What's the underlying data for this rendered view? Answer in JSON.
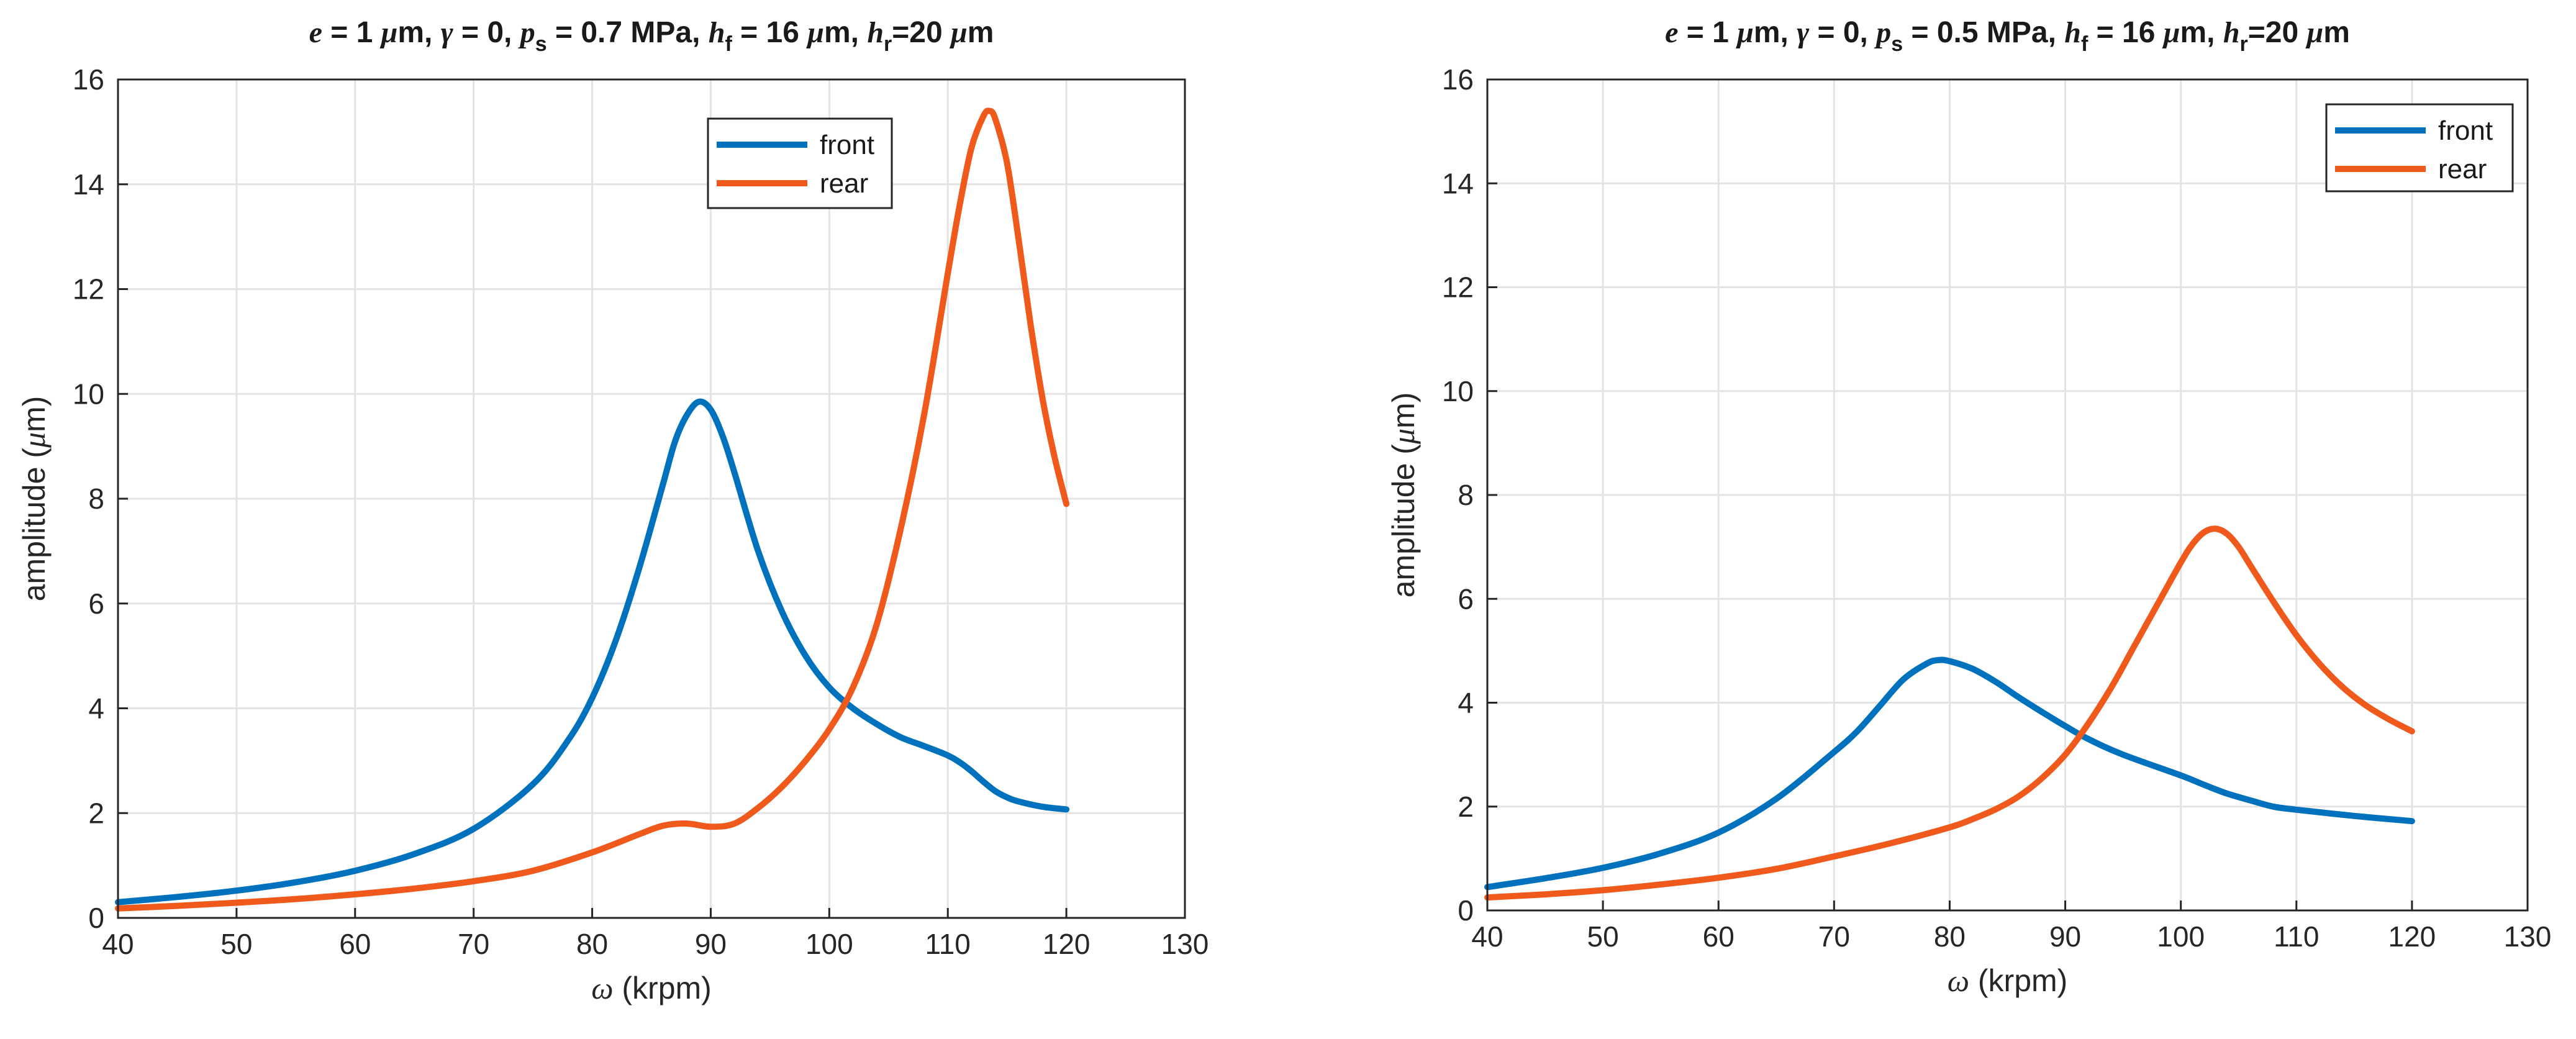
{
  "chart_data": [
    {
      "type": "line",
      "title": {
        "e_sym": "e",
        "e_eq": " = 1 ",
        "e_unit_mu": "μ",
        "e_unit_m": "m, ",
        "gamma_sym": "γ",
        "gamma_eq": " = 0,  ",
        "p_sym": "p",
        "p_sub": "s",
        "p_eq": " = 0.7 MPa,  ",
        "hf_sym": "h",
        "hf_sub": "f",
        "hf_eq": " = 16 ",
        "hf_unit_mu": "μ",
        "hf_unit_m": "m,  ",
        "hr_sym": "h",
        "hr_sub": "r",
        "hr_eq": "=20 ",
        "hr_unit_mu": "μ",
        "hr_unit_m": "m"
      },
      "xlabel": {
        "sym": "ω",
        "text": " (krpm)"
      },
      "ylabel": {
        "pre": "amplitude (",
        "mu": "μ",
        "post": "m)"
      },
      "xlim": [
        40,
        130
      ],
      "ylim": [
        0,
        16
      ],
      "xticks": [
        40,
        50,
        60,
        70,
        80,
        90,
        100,
        110,
        120,
        130
      ],
      "yticks": [
        0,
        2,
        4,
        6,
        8,
        10,
        12,
        14,
        16
      ],
      "xtick_labels": [
        "40",
        "50",
        "60",
        "70",
        "80",
        "90",
        "100",
        "110",
        "120",
        "130"
      ],
      "ytick_labels": [
        "0",
        "2",
        "4",
        "6",
        "8",
        "10",
        "12",
        "14",
        "16"
      ],
      "grid": true,
      "legend_position": "top-right",
      "series": [
        {
          "name": "front",
          "color": "#0072bd",
          "x": [
            40,
            45,
            50,
            55,
            60,
            65,
            70,
            75,
            78,
            80,
            82,
            84,
            86,
            87,
            88,
            89,
            90,
            91,
            92,
            94,
            96,
            98,
            100,
            102,
            104,
            106,
            108,
            110,
            111,
            112,
            113,
            114,
            115,
            116,
            118,
            120
          ],
          "y": [
            0.3,
            0.4,
            0.52,
            0.68,
            0.9,
            1.22,
            1.7,
            2.55,
            3.4,
            4.2,
            5.3,
            6.7,
            8.3,
            9.1,
            9.6,
            9.85,
            9.7,
            9.2,
            8.5,
            7.0,
            5.85,
            5.0,
            4.4,
            4.0,
            3.7,
            3.45,
            3.28,
            3.1,
            2.97,
            2.8,
            2.6,
            2.42,
            2.3,
            2.22,
            2.12,
            2.07
          ]
        },
        {
          "name": "rear",
          "color": "#ef5a1c",
          "x": [
            40,
            45,
            50,
            55,
            60,
            65,
            70,
            75,
            80,
            84,
            86,
            88,
            90,
            92,
            94,
            96,
            98,
            100,
            102,
            104,
            106,
            108,
            110,
            111,
            112,
            113,
            113.5,
            114,
            115,
            116,
            117,
            118,
            119,
            120
          ],
          "y": [
            0.18,
            0.23,
            0.29,
            0.36,
            0.45,
            0.56,
            0.7,
            0.9,
            1.25,
            1.6,
            1.76,
            1.8,
            1.74,
            1.8,
            2.1,
            2.5,
            3.0,
            3.6,
            4.4,
            5.6,
            7.4,
            9.6,
            12.3,
            13.6,
            14.7,
            15.3,
            15.4,
            15.25,
            14.4,
            12.9,
            11.3,
            9.9,
            8.8,
            7.9
          ]
        }
      ]
    },
    {
      "type": "line",
      "title": {
        "e_sym": "e",
        "e_eq": " = 1 ",
        "e_unit_mu": "μ",
        "e_unit_m": "m, ",
        "gamma_sym": "γ",
        "gamma_eq": " = 0,  ",
        "p_sym": "p",
        "p_sub": "s",
        "p_eq": " = 0.5 MPa,  ",
        "hf_sym": "h",
        "hf_sub": "f",
        "hf_eq": " = 16 ",
        "hf_unit_mu": "μ",
        "hf_unit_m": "m,  ",
        "hr_sym": "h",
        "hr_sub": "r",
        "hr_eq": "=20 ",
        "hr_unit_mu": "μ",
        "hr_unit_m": "m"
      },
      "xlabel": {
        "sym": "ω",
        "text": " (krpm)"
      },
      "ylabel": {
        "pre": "amplitude (",
        "mu": "μ",
        "post": "m)"
      },
      "xlim": [
        40,
        130
      ],
      "ylim": [
        0,
        16
      ],
      "xticks": [
        40,
        50,
        60,
        70,
        80,
        90,
        100,
        110,
        120,
        130
      ],
      "yticks": [
        0,
        2,
        4,
        6,
        8,
        10,
        12,
        14,
        16
      ],
      "xtick_labels": [
        "40",
        "50",
        "60",
        "70",
        "80",
        "90",
        "100",
        "110",
        "120",
        "130"
      ],
      "ytick_labels": [
        "0",
        "2",
        "4",
        "6",
        "8",
        "10",
        "12",
        "14",
        "16"
      ],
      "grid": true,
      "legend_position": "top-right",
      "series": [
        {
          "name": "front",
          "color": "#0072bd",
          "x": [
            40,
            45,
            50,
            55,
            60,
            65,
            70,
            72,
            74,
            76,
            78,
            79,
            80,
            82,
            84,
            86,
            88,
            90,
            92,
            95,
            100,
            102,
            104,
            106,
            108,
            110,
            115,
            120
          ],
          "y": [
            0.45,
            0.62,
            0.82,
            1.1,
            1.5,
            2.15,
            3.05,
            3.45,
            3.95,
            4.45,
            4.75,
            4.82,
            4.8,
            4.65,
            4.4,
            4.1,
            3.82,
            3.55,
            3.3,
            3.0,
            2.6,
            2.42,
            2.25,
            2.12,
            2.0,
            1.94,
            1.82,
            1.72
          ]
        },
        {
          "name": "rear",
          "color": "#ef5a1c",
          "x": [
            40,
            45,
            50,
            55,
            60,
            65,
            70,
            75,
            80,
            82,
            84,
            86,
            88,
            90,
            92,
            94,
            96,
            98,
            100,
            101,
            102,
            103,
            104,
            105,
            106,
            108,
            110,
            112,
            114,
            116,
            118,
            120
          ],
          "y": [
            0.25,
            0.31,
            0.39,
            0.5,
            0.63,
            0.8,
            1.04,
            1.3,
            1.6,
            1.76,
            1.95,
            2.2,
            2.55,
            3.0,
            3.6,
            4.3,
            5.1,
            5.9,
            6.7,
            7.05,
            7.28,
            7.35,
            7.25,
            7.0,
            6.65,
            5.95,
            5.3,
            4.75,
            4.3,
            3.95,
            3.68,
            3.45
          ]
        }
      ]
    }
  ]
}
